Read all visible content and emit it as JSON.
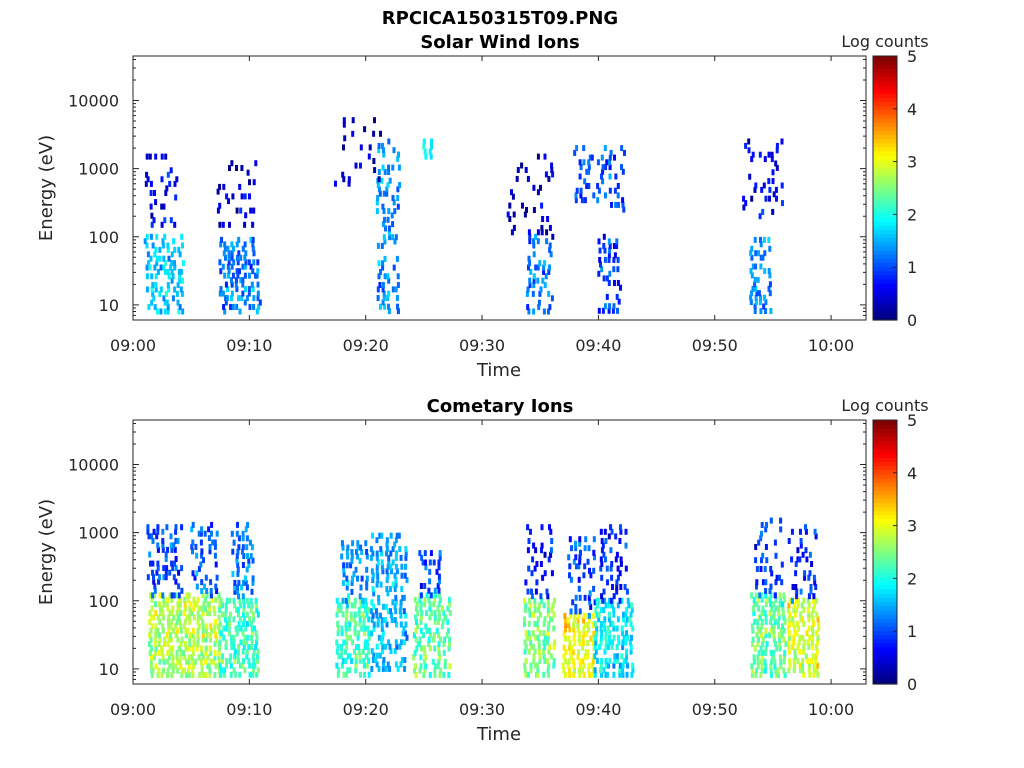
{
  "figure_title": "RPCICA150315T09.PNG",
  "chart_data": [
    {
      "type": "heatmap",
      "title": "Solar Wind Ions",
      "xlabel": "Time",
      "ylabel": "Energy (eV)",
      "x_ticks": [
        "09:00",
        "09:10",
        "09:20",
        "09:30",
        "09:40",
        "09:50",
        "10:00"
      ],
      "y_ticks": [
        "10",
        "100",
        "1000",
        "10000"
      ],
      "y_scale": "log",
      "ylim": [
        6,
        45000
      ],
      "xlim": [
        "09:00",
        "10:03"
      ],
      "colorbar": {
        "label": "Log counts",
        "ticks": [
          "0",
          "1",
          "2",
          "3",
          "4",
          "5"
        ],
        "range": [
          0,
          5
        ],
        "colormap": "jet"
      },
      "clusters": [
        {
          "t": 2.6,
          "e_lo": 8,
          "e_hi": 100,
          "level": 1.6,
          "spread": 1.5,
          "density": 0.6
        },
        {
          "t": 2.3,
          "e_lo": 150,
          "e_hi": 1500,
          "level": 0.6,
          "spread": 1.2,
          "density": 0.3
        },
        {
          "t": 9.0,
          "e_lo": 8,
          "e_hi": 90,
          "level": 1.2,
          "spread": 1.6,
          "density": 0.55
        },
        {
          "t": 8.8,
          "e_lo": 150,
          "e_hi": 1200,
          "level": 0.4,
          "spread": 1.5,
          "density": 0.25
        },
        {
          "t": 21.8,
          "e_lo": 7,
          "e_hi": 2500,
          "level": 1.3,
          "spread": 0.8,
          "density": 0.45
        },
        {
          "t": 19.3,
          "e_lo": 600,
          "e_hi": 6000,
          "level": 0.4,
          "spread": 2.0,
          "density": 0.12
        },
        {
          "t": 25.2,
          "e_lo": 1500,
          "e_hi": 2500,
          "level": 1.8,
          "spread": 0.3,
          "density": 0.9
        },
        {
          "t": 34.8,
          "e_lo": 8,
          "e_hi": 100,
          "level": 1.2,
          "spread": 0.9,
          "density": 0.55
        },
        {
          "t": 34.0,
          "e_lo": 100,
          "e_hi": 1500,
          "level": 0.3,
          "spread": 1.8,
          "density": 0.15
        },
        {
          "t": 40.8,
          "e_lo": 7,
          "e_hi": 100,
          "level": 0.9,
          "spread": 0.8,
          "density": 0.5
        },
        {
          "t": 40.0,
          "e_lo": 250,
          "e_hi": 2000,
          "level": 1.0,
          "spread": 2.0,
          "density": 0.3
        },
        {
          "t": 53.8,
          "e_lo": 7,
          "e_hi": 90,
          "level": 1.3,
          "spread": 0.8,
          "density": 0.55
        },
        {
          "t": 54.0,
          "e_lo": 200,
          "e_hi": 2500,
          "level": 0.6,
          "spread": 1.6,
          "density": 0.2
        }
      ]
    },
    {
      "type": "heatmap",
      "title": "Cometary Ions",
      "xlabel": "Time",
      "ylabel": "Energy (eV)",
      "x_ticks": [
        "09:00",
        "09:10",
        "09:20",
        "09:30",
        "09:40",
        "09:50",
        "10:00"
      ],
      "y_ticks": [
        "10",
        "100",
        "1000",
        "10000"
      ],
      "y_scale": "log",
      "ylim": [
        6,
        45000
      ],
      "xlim": [
        "09:00",
        "10:03"
      ],
      "colorbar": {
        "label": "Log counts",
        "ticks": [
          "0",
          "1",
          "2",
          "3",
          "4",
          "5"
        ],
        "range": [
          0,
          5
        ],
        "colormap": "jet"
      },
      "clusters": [
        {
          "t": 2.9,
          "e_lo": 7,
          "e_hi": 120,
          "level": 2.7,
          "spread": 1.5,
          "density": 0.85
        },
        {
          "t": 2.6,
          "e_lo": 120,
          "e_hi": 1200,
          "level": 1.0,
          "spread": 1.3,
          "density": 0.45
        },
        {
          "t": 6.0,
          "e_lo": 7,
          "e_hi": 120,
          "level": 2.7,
          "spread": 1.3,
          "density": 0.85
        },
        {
          "t": 6.0,
          "e_lo": 120,
          "e_hi": 1300,
          "level": 1.1,
          "spread": 1.0,
          "density": 0.45
        },
        {
          "t": 9.0,
          "e_lo": 7,
          "e_hi": 100,
          "level": 2.2,
          "spread": 1.5,
          "density": 0.8
        },
        {
          "t": 9.3,
          "e_lo": 100,
          "e_hi": 1300,
          "level": 1.2,
          "spread": 0.8,
          "density": 0.5
        },
        {
          "t": 18.8,
          "e_lo": 7,
          "e_hi": 100,
          "level": 2.2,
          "spread": 1.3,
          "density": 0.8
        },
        {
          "t": 18.9,
          "e_lo": 100,
          "e_hi": 700,
          "level": 1.3,
          "spread": 1.0,
          "density": 0.5
        },
        {
          "t": 21.9,
          "e_lo": 10,
          "e_hi": 900,
          "level": 1.5,
          "spread": 1.4,
          "density": 0.6
        },
        {
          "t": 25.6,
          "e_lo": 7,
          "e_hi": 120,
          "level": 2.3,
          "spread": 1.4,
          "density": 0.8
        },
        {
          "t": 25.4,
          "e_lo": 120,
          "e_hi": 500,
          "level": 1.0,
          "spread": 0.8,
          "density": 0.45
        },
        {
          "t": 34.8,
          "e_lo": 7,
          "e_hi": 100,
          "level": 2.5,
          "spread": 1.2,
          "density": 0.85
        },
        {
          "t": 34.8,
          "e_lo": 100,
          "e_hi": 1200,
          "level": 0.8,
          "spread": 1.0,
          "density": 0.35
        },
        {
          "t": 38.2,
          "e_lo": 7,
          "e_hi": 60,
          "level": 3.1,
          "spread": 1.2,
          "density": 0.9
        },
        {
          "t": 38.5,
          "e_lo": 60,
          "e_hi": 800,
          "level": 1.0,
          "spread": 1.0,
          "density": 0.4
        },
        {
          "t": 41.2,
          "e_lo": 7,
          "e_hi": 100,
          "level": 1.8,
          "spread": 1.5,
          "density": 0.75
        },
        {
          "t": 41.2,
          "e_lo": 100,
          "e_hi": 1200,
          "level": 0.8,
          "spread": 1.0,
          "density": 0.4
        },
        {
          "t": 54.5,
          "e_lo": 7,
          "e_hi": 120,
          "level": 2.4,
          "spread": 1.3,
          "density": 0.85
        },
        {
          "t": 54.5,
          "e_lo": 120,
          "e_hi": 1500,
          "level": 0.9,
          "spread": 1.0,
          "density": 0.4
        },
        {
          "t": 57.5,
          "e_lo": 7,
          "e_hi": 100,
          "level": 2.9,
          "spread": 1.2,
          "density": 0.9
        },
        {
          "t": 57.5,
          "e_lo": 100,
          "e_hi": 1200,
          "level": 0.9,
          "spread": 1.0,
          "density": 0.4
        }
      ]
    }
  ]
}
